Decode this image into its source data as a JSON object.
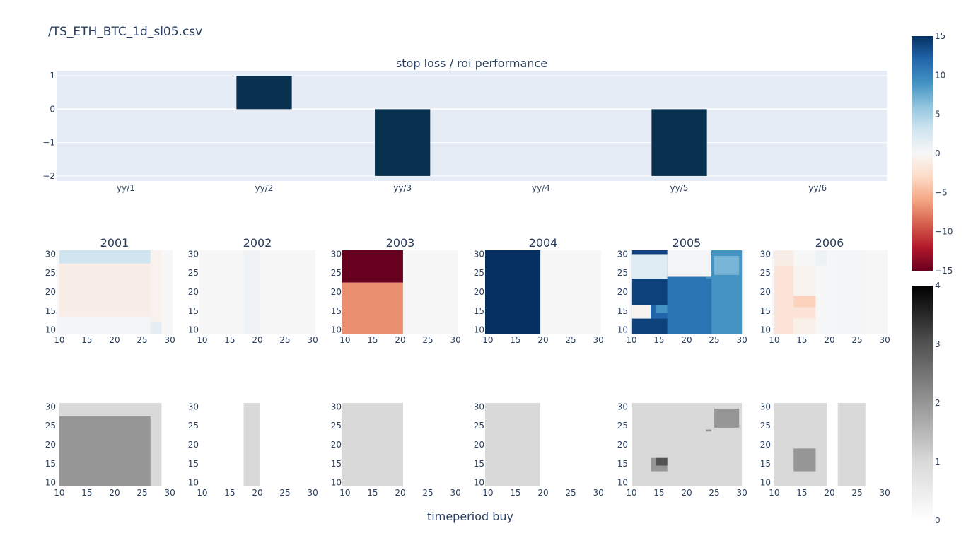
{
  "page": {
    "title": "/TS_ETH_BTC_1d_sl05.csv",
    "xaxis_title": "timeperiod buy"
  },
  "colors": {
    "plot_bg": "#e5ecf6",
    "bar": "#08304f",
    "grid": "#ffffff",
    "text": "#2a3f5f",
    "diverging_scale": [
      "#67001f",
      "#b2182b",
      "#d6604d",
      "#f4a582",
      "#fddbc7",
      "#f7f7f7",
      "#d1e5f0",
      "#92c5de",
      "#4393c3",
      "#2166ac",
      "#053061"
    ],
    "gray_scale": [
      "#ffffff",
      "#d9d9d9",
      "#969696",
      "#525252",
      "#000000"
    ]
  },
  "chart_data": [
    {
      "type": "bar",
      "title": "stop loss / roi performance",
      "categories": [
        "yy/1",
        "yy/2",
        "yy/3",
        "yy/4",
        "yy/5",
        "yy/6"
      ],
      "values": [
        0,
        1,
        -2,
        0,
        -2,
        0
      ],
      "ylim": [
        -2.15,
        1.15
      ],
      "yticks": [
        1,
        0,
        -1,
        -2
      ],
      "ytick_labels": [
        "1",
        "0",
        "−1",
        "−2"
      ],
      "grid": true
    },
    {
      "type": "heatmap",
      "row": "performance",
      "colorscale": "RdBu",
      "zlim": [
        -15,
        15
      ],
      "xticks": [
        "10",
        "15",
        "20",
        "25",
        "30"
      ],
      "yticks": [
        "30",
        "25",
        "20",
        "15",
        "10"
      ],
      "colorbar_ticks": [
        "15",
        "10",
        "5",
        "0",
        "−5",
        "−10",
        "−15"
      ],
      "panels": [
        {
          "title": "2001",
          "x": [
            10,
            30
          ],
          "y": [
            10,
            30
          ],
          "regions": [
            {
              "x": [
                10,
                26.5
              ],
              "y": [
                27.5,
                31
              ],
              "z": 3
            },
            {
              "x": [
                10,
                26.5
              ],
              "y": [
                13.5,
                27.5
              ],
              "z": -1
            },
            {
              "x": [
                10,
                26.5
              ],
              "y": [
                9,
                13.5
              ],
              "z": 0.3
            },
            {
              "x": [
                26.5,
                28.5
              ],
              "y": [
                12,
                31
              ],
              "z": -0.6
            },
            {
              "x": [
                26.5,
                28.5
              ],
              "y": [
                9,
                12
              ],
              "z": 1.5
            },
            {
              "x": [
                28.5,
                30.5
              ],
              "y": [
                9,
                31
              ],
              "z": 0
            }
          ]
        },
        {
          "title": "2002",
          "x": [
            10,
            30
          ],
          "y": [
            10,
            30
          ],
          "regions": [
            {
              "x": [
                9.5,
                30.5
              ],
              "y": [
                9,
                31
              ],
              "z": 0
            },
            {
              "x": [
                17.5,
                20.5
              ],
              "y": [
                9,
                31
              ],
              "z": 0.6
            }
          ]
        },
        {
          "title": "2003",
          "x": [
            10,
            30
          ],
          "y": [
            10,
            30
          ],
          "regions": [
            {
              "x": [
                9.5,
                30.5
              ],
              "y": [
                9,
                31
              ],
              "z": 0
            },
            {
              "x": [
                9.5,
                20.5
              ],
              "y": [
                22.5,
                31
              ],
              "z": -15
            },
            {
              "x": [
                9.5,
                20.5
              ],
              "y": [
                9,
                22.5
              ],
              "z": -7
            }
          ]
        },
        {
          "title": "2004",
          "x": [
            10,
            30
          ],
          "y": [
            10,
            30
          ],
          "regions": [
            {
              "x": [
                9.5,
                30.5
              ],
              "y": [
                9,
                31
              ],
              "z": 0
            },
            {
              "x": [
                9.5,
                19.5
              ],
              "y": [
                9,
                31
              ],
              "z": 15
            }
          ]
        },
        {
          "title": "2005",
          "x": [
            10,
            30
          ],
          "y": [
            10,
            30
          ],
          "regions": [
            {
              "x": [
                10,
                30
              ],
              "y": [
                9,
                31
              ],
              "z": 12
            },
            {
              "x": [
                10,
                16.5
              ],
              "y": [
                9,
                13
              ],
              "z": 14
            },
            {
              "x": [
                10,
                13.5
              ],
              "y": [
                13,
                16.5
              ],
              "z": -0.5
            },
            {
              "x": [
                13.5,
                16.5
              ],
              "y": [
                13,
                16.5
              ],
              "z": 12
            },
            {
              "x": [
                14.5,
                16.5
              ],
              "y": [
                14.5,
                16.5
              ],
              "z": 9
            },
            {
              "x": [
                10,
                16.5
              ],
              "y": [
                16.5,
                23.5
              ],
              "z": 14
            },
            {
              "x": [
                10,
                16.5
              ],
              "y": [
                23.5,
                30
              ],
              "z": 2
            },
            {
              "x": [
                10,
                16.5
              ],
              "y": [
                30,
                31
              ],
              "z": 14
            },
            {
              "x": [
                16.5,
                24.5
              ],
              "y": [
                24,
                31
              ],
              "z": 0.3
            },
            {
              "x": [
                16.5,
                24.5
              ],
              "y": [
                9,
                24
              ],
              "z": 11
            },
            {
              "x": [
                23.5,
                24.5
              ],
              "y": [
                23.5,
                24
              ],
              "z": 9
            },
            {
              "x": [
                24.5,
                30
              ],
              "y": [
                9,
                31
              ],
              "z": 9
            },
            {
              "x": [
                25,
                29.5
              ],
              "y": [
                24.5,
                29.5
              ],
              "z": 7
            }
          ]
        },
        {
          "title": "2006",
          "x": [
            10,
            30
          ],
          "y": [
            10,
            30
          ],
          "regions": [
            {
              "x": [
                10,
                30.5
              ],
              "y": [
                9,
                31
              ],
              "z": 0
            },
            {
              "x": [
                10,
                13.5
              ],
              "y": [
                9,
                27
              ],
              "z": -2
            },
            {
              "x": [
                10,
                13.5
              ],
              "y": [
                27,
                31
              ],
              "z": -1
            },
            {
              "x": [
                13.5,
                17.5
              ],
              "y": [
                9,
                13
              ],
              "z": -0.8
            },
            {
              "x": [
                13.5,
                17.5
              ],
              "y": [
                13,
                16
              ],
              "z": -2
            },
            {
              "x": [
                13.5,
                17.5
              ],
              "y": [
                16,
                19
              ],
              "z": -3.5
            },
            {
              "x": [
                13.5,
                17.5
              ],
              "y": [
                19,
                27
              ],
              "z": -0.5
            },
            {
              "x": [
                13.5,
                17.5
              ],
              "y": [
                27,
                31
              ],
              "z": 0
            },
            {
              "x": [
                17.5,
                19.5
              ],
              "y": [
                27,
                31
              ],
              "z": 0.8
            },
            {
              "x": [
                19.5,
                21.5
              ],
              "y": [
                9,
                31
              ],
              "z": 0.2
            },
            {
              "x": [
                21.5,
                26.5
              ],
              "y": [
                9,
                31
              ],
              "z": 0.3
            }
          ]
        }
      ]
    },
    {
      "type": "heatmap",
      "row": "count",
      "colorscale": "Greys",
      "zlim": [
        0,
        4
      ],
      "xticks": [
        "10",
        "15",
        "20",
        "25",
        "30"
      ],
      "yticks": [
        "30",
        "25",
        "20",
        "15",
        "10"
      ],
      "colorbar_ticks": [
        "4",
        "3",
        "2",
        "1",
        "0"
      ],
      "panels": [
        {
          "x": [
            10,
            30
          ],
          "y": [
            10,
            30
          ],
          "regions": [
            {
              "x": [
                10,
                28.5
              ],
              "y": [
                9,
                31
              ],
              "z": 1
            },
            {
              "x": [
                10,
                26.5
              ],
              "y": [
                9,
                27.5
              ],
              "z": 2
            }
          ]
        },
        {
          "x": [
            10,
            30
          ],
          "y": [
            10,
            30
          ],
          "regions": [
            {
              "x": [
                17.5,
                20.5
              ],
              "y": [
                9,
                31
              ],
              "z": 1
            }
          ]
        },
        {
          "x": [
            10,
            30
          ],
          "y": [
            10,
            30
          ],
          "regions": [
            {
              "x": [
                9.5,
                20.5
              ],
              "y": [
                9,
                31
              ],
              "z": 1
            }
          ]
        },
        {
          "x": [
            10,
            30
          ],
          "y": [
            10,
            30
          ],
          "regions": [
            {
              "x": [
                9.5,
                19.5
              ],
              "y": [
                9,
                31
              ],
              "z": 1
            }
          ]
        },
        {
          "x": [
            10,
            30
          ],
          "y": [
            10,
            30
          ],
          "regions": [
            {
              "x": [
                10,
                30
              ],
              "y": [
                9,
                31
              ],
              "z": 1
            },
            {
              "x": [
                13.5,
                16.5
              ],
              "y": [
                13,
                16.5
              ],
              "z": 2
            },
            {
              "x": [
                14.5,
                16.5
              ],
              "y": [
                14.5,
                16.5
              ],
              "z": 3
            },
            {
              "x": [
                23.5,
                24.5
              ],
              "y": [
                23.5,
                24
              ],
              "z": 2
            },
            {
              "x": [
                25,
                29.5
              ],
              "y": [
                24.5,
                29.5
              ],
              "z": 2
            }
          ]
        },
        {
          "x": [
            10,
            30
          ],
          "y": [
            10,
            30
          ],
          "regions": [
            {
              "x": [
                10,
                19.5
              ],
              "y": [
                9,
                31
              ],
              "z": 1
            },
            {
              "x": [
                13.5,
                17.5
              ],
              "y": [
                13,
                19
              ],
              "z": 2
            },
            {
              "x": [
                21.5,
                26.5
              ],
              "y": [
                9,
                31
              ],
              "z": 1
            }
          ]
        }
      ]
    }
  ]
}
